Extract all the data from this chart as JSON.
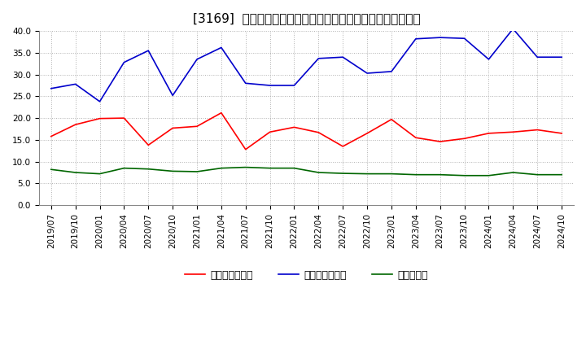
{
  "title": "[3169]  売上債権回転率、買入債務回転率、在庫回転率の推移",
  "x_labels": [
    "2019/07",
    "2019/10",
    "2020/01",
    "2020/04",
    "2020/07",
    "2020/10",
    "2021/01",
    "2021/04",
    "2021/07",
    "2021/10",
    "2022/01",
    "2022/04",
    "2022/07",
    "2022/10",
    "2023/01",
    "2023/04",
    "2023/07",
    "2023/10",
    "2024/01",
    "2024/04",
    "2024/07",
    "2024/10"
  ],
  "receivables_turnover": [
    15.8,
    18.5,
    19.9,
    20.0,
    13.8,
    17.7,
    18.1,
    21.2,
    12.8,
    16.8,
    17.9,
    16.7,
    13.5,
    16.5,
    19.7,
    15.5,
    14.6,
    15.3,
    16.5,
    16.8,
    17.3,
    16.5
  ],
  "payables_turnover": [
    26.8,
    27.8,
    23.8,
    32.8,
    35.5,
    25.2,
    33.5,
    36.2,
    28.0,
    27.5,
    27.5,
    33.7,
    34.0,
    30.3,
    30.7,
    38.2,
    38.5,
    38.3,
    33.5,
    40.5,
    34.0,
    34.0
  ],
  "inventory_turnover": [
    8.2,
    7.5,
    7.2,
    8.5,
    8.3,
    7.8,
    7.7,
    8.5,
    8.7,
    8.5,
    8.5,
    7.5,
    7.3,
    7.2,
    7.2,
    7.0,
    7.0,
    6.8,
    6.8,
    7.5,
    7.0,
    7.0
  ],
  "color_receivables": "#ff0000",
  "color_payables": "#0000cc",
  "color_inventory": "#006600",
  "ylim": [
    0,
    40.0
  ],
  "yticks": [
    0.0,
    5.0,
    10.0,
    15.0,
    20.0,
    25.0,
    30.0,
    35.0,
    40.0
  ],
  "legend_label_receivables": "売上債権回転率",
  "legend_label_payables": "買入債務回転率",
  "legend_label_inventory": "在庫回転率",
  "bg_color": "#ffffff",
  "plot_bg_color": "#ffffff",
  "grid_color": "#b0b0b0",
  "title_fontsize": 11,
  "legend_fontsize": 9,
  "tick_fontsize": 7.5
}
